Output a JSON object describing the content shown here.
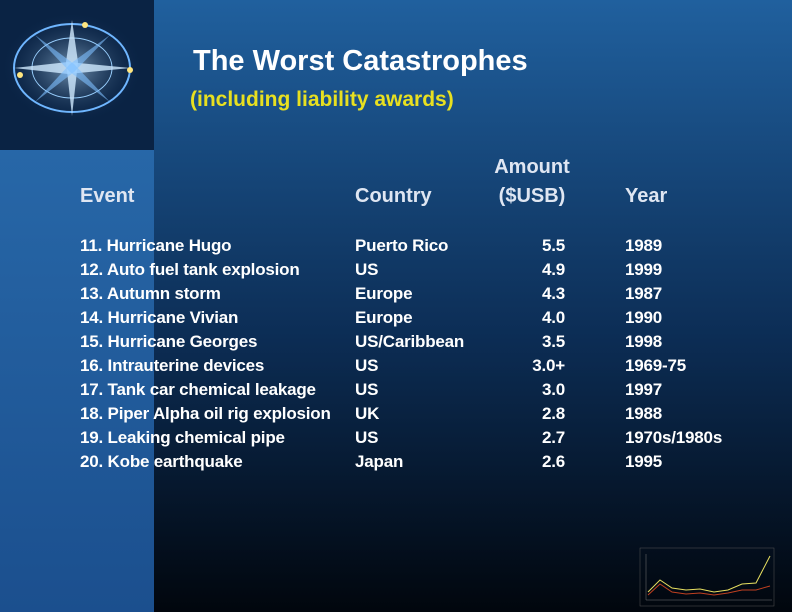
{
  "header": {
    "title": "The Worst Catastrophes",
    "subtitle": "(including liability awards)"
  },
  "table": {
    "columns": [
      "Event",
      "Country",
      [
        "Amount",
        "($USB)"
      ],
      "Year"
    ],
    "rows": [
      [
        "11. Hurricane Hugo",
        "Puerto Rico",
        "5.5",
        "1989"
      ],
      [
        "12. Auto fuel tank explosion",
        "US",
        "4.9",
        "1999"
      ],
      [
        "13. Autumn storm",
        "Europe",
        "4.3",
        "1987"
      ],
      [
        "14. Hurricane Vivian",
        "Europe",
        "4.0",
        "1990"
      ],
      [
        "15. Hurricane Georges",
        "US/Caribbean",
        "3.5",
        "1998"
      ],
      [
        "16. Intrauterine devices",
        "US",
        "3.0+",
        "1969-75"
      ],
      [
        "17. Tank car chemical leakage",
        "US",
        "3.0",
        "1997"
      ],
      [
        "18. Piper Alpha oil rig explosion",
        "UK",
        "2.8",
        "1988"
      ],
      [
        "19. Leaking chemical pipe",
        "US",
        "2.7",
        "1970s/1980s"
      ],
      [
        "20. Kobe earthquake",
        "Japan",
        "2.6",
        "1995"
      ]
    ]
  }
}
